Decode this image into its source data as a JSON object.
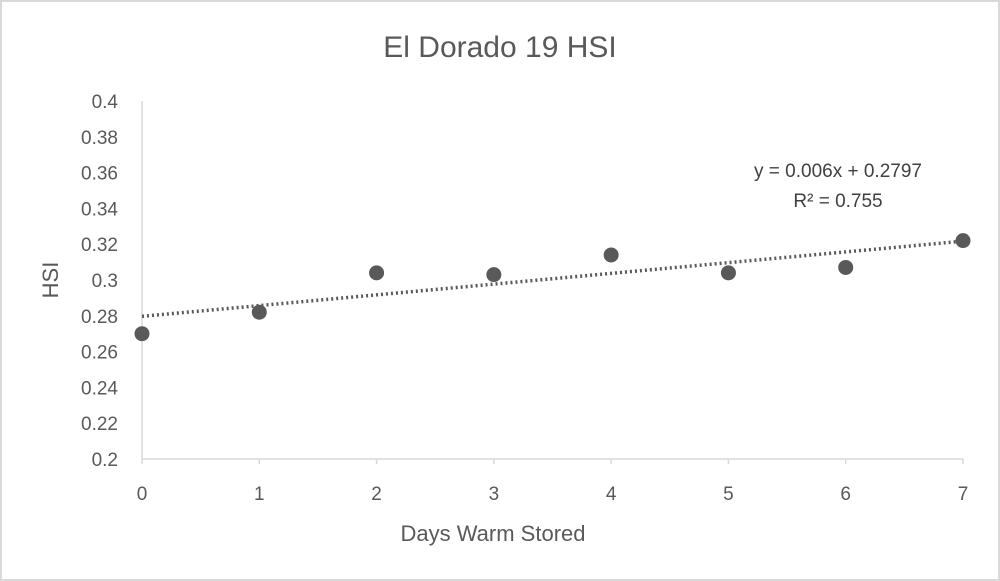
{
  "chart_data": {
    "type": "scatter",
    "title": "El Dorado 19 HSI",
    "xlabel": "Days Warm Stored",
    "ylabel": "HSI",
    "xlim": [
      0,
      7
    ],
    "ylim": [
      0.2,
      0.4
    ],
    "x_ticks": [
      "0",
      "1",
      "2",
      "3",
      "4",
      "5",
      "6",
      "7"
    ],
    "y_ticks": [
      "0.2",
      "0.22",
      "0.24",
      "0.26",
      "0.28",
      "0.3",
      "0.32",
      "0.34",
      "0.36",
      "0.38",
      "0.4"
    ],
    "x": [
      0,
      1,
      2,
      3,
      4,
      5,
      6,
      7
    ],
    "y": [
      0.27,
      0.282,
      0.304,
      0.303,
      0.314,
      0.304,
      0.307,
      0.322
    ],
    "grid": false,
    "trendline": {
      "type": "linear",
      "slope": 0.006,
      "intercept": 0.2797,
      "equation_label": "y = 0.006x + 0.2797",
      "r2_label": "R² = 0.755"
    },
    "colors": {
      "marker": "#595959",
      "trendline": "#595959",
      "axis": "#d9d9d9",
      "text": "#595959"
    }
  }
}
